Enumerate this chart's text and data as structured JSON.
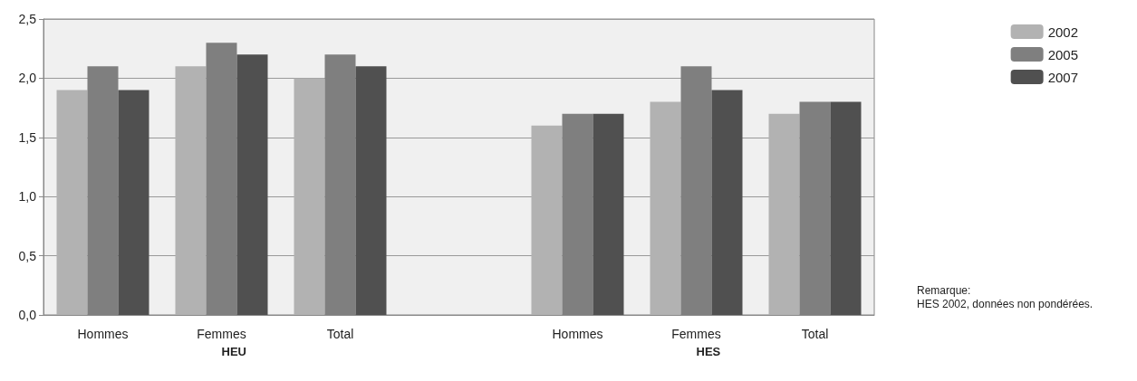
{
  "chart_data": {
    "type": "bar",
    "categories": [
      "Hommes",
      "Femmes",
      "Total",
      null,
      "Hommes",
      "Femmes",
      "Total"
    ],
    "series": [
      {
        "name": "2002",
        "color": "#b2b2b2",
        "values": [
          1.9,
          2.1,
          2.0,
          null,
          1.6,
          1.8,
          1.7
        ]
      },
      {
        "name": "2005",
        "color": "#7f7f7f",
        "values": [
          2.1,
          2.3,
          2.2,
          null,
          1.7,
          2.1,
          1.8
        ]
      },
      {
        "name": "2007",
        "color": "#505050",
        "values": [
          1.9,
          2.2,
          2.1,
          null,
          1.7,
          1.9,
          1.8
        ]
      }
    ],
    "ylim": [
      0,
      2.5
    ],
    "yticks": [
      {
        "value": 0,
        "label": "0,0"
      },
      {
        "value": 0.5,
        "label": "0,5"
      },
      {
        "value": 1,
        "label": "1,0"
      },
      {
        "value": 1.5,
        "label": "1,5"
      },
      {
        "value": 2,
        "label": "2,0"
      },
      {
        "value": 2.5,
        "label": "2,5"
      }
    ],
    "grid": "y",
    "legend": "top right",
    "annotations": [
      "HEU",
      "HES",
      "Remarque:\nHES 2002, données non pondérées."
    ]
  }
}
